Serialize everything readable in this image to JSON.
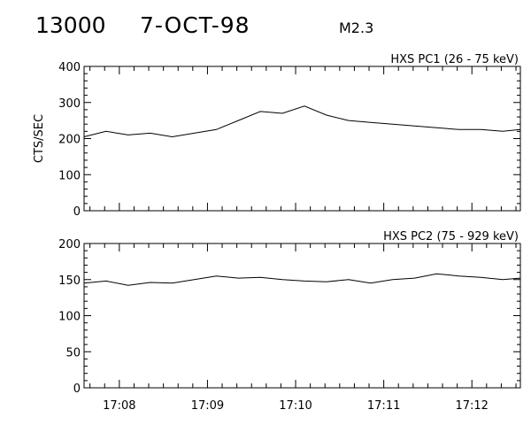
{
  "header": {
    "event_id": "13000",
    "date": "7-OCT-98",
    "flare_class": "M2.3"
  },
  "colors": {
    "background": "#ffffff",
    "ink": "#000000"
  },
  "chart_data": [
    {
      "type": "line",
      "title": "HXS PC1 (26 - 75 keV)",
      "ylabel": "CTS/SEC",
      "xlabel": "",
      "xlim": [
        "17:07:36",
        "17:12:33"
      ],
      "ylim": [
        0,
        400
      ],
      "yticks": [
        0,
        100,
        200,
        300,
        400
      ],
      "xticks": [
        "17:08",
        "17:09",
        "17:10",
        "17:11",
        "17:12"
      ],
      "grid": false,
      "series": [
        {
          "x": [
            "17:07:36",
            "17:07:51",
            "17:08:06",
            "17:08:21",
            "17:08:36",
            "17:08:51",
            "17:09:06",
            "17:09:21",
            "17:09:36",
            "17:09:51",
            "17:10:06",
            "17:10:21",
            "17:10:36",
            "17:10:51",
            "17:11:06",
            "17:11:21",
            "17:11:36",
            "17:11:51",
            "17:12:06",
            "17:12:21",
            "17:12:33"
          ],
          "values": [
            205,
            220,
            210,
            215,
            205,
            215,
            225,
            250,
            275,
            270,
            290,
            265,
            250,
            245,
            240,
            235,
            230,
            225,
            225,
            220,
            225
          ]
        }
      ]
    },
    {
      "type": "line",
      "title": "HXS PC2 (75 - 929 keV)",
      "ylabel": "",
      "xlabel": "",
      "xlim": [
        "17:07:36",
        "17:12:33"
      ],
      "ylim": [
        0,
        200
      ],
      "yticks": [
        0,
        50,
        100,
        150,
        200
      ],
      "xticks": [
        "17:08",
        "17:09",
        "17:10",
        "17:11",
        "17:12"
      ],
      "grid": false,
      "series": [
        {
          "x": [
            "17:07:36",
            "17:07:51",
            "17:08:06",
            "17:08:21",
            "17:08:36",
            "17:08:51",
            "17:09:06",
            "17:09:21",
            "17:09:36",
            "17:09:51",
            "17:10:06",
            "17:10:21",
            "17:10:36",
            "17:10:51",
            "17:11:06",
            "17:11:21",
            "17:11:36",
            "17:11:51",
            "17:12:06",
            "17:12:21",
            "17:12:33"
          ],
          "values": [
            145,
            148,
            142,
            146,
            145,
            150,
            155,
            152,
            153,
            150,
            148,
            147,
            150,
            145,
            150,
            152,
            158,
            155,
            153,
            150,
            152
          ]
        }
      ]
    }
  ]
}
